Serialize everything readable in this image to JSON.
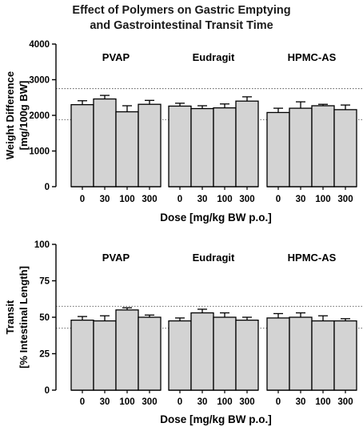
{
  "figure": {
    "title_line1": "Effect of Polymers on Gastric Emptying",
    "title_line2": "and Gastrointestinal Transit Time"
  },
  "colors": {
    "bar_fill": "#d3d3d3",
    "bar_stroke": "#000000",
    "reference_line": "#555555"
  },
  "chart_data": [
    {
      "type": "bar",
      "ylabel_line1": "Weight Difference",
      "ylabel_line2": "[mg/100g BW]",
      "xlabel": "Dose [mg/kg BW p.o.]",
      "ylim": [
        0,
        4000
      ],
      "yticks": [
        0,
        1000,
        2000,
        3000,
        4000
      ],
      "reference_lines": [
        2750,
        1880
      ],
      "groups": [
        {
          "name": "PVAP",
          "categories": [
            "0",
            "30",
            "100",
            "300"
          ],
          "values": [
            2300,
            2460,
            2100,
            2310
          ],
          "errors": [
            110,
            100,
            170,
            110
          ]
        },
        {
          "name": "Eudragit",
          "categories": [
            "0",
            "30",
            "100",
            "300"
          ],
          "values": [
            2260,
            2190,
            2210,
            2400
          ],
          "errors": [
            80,
            80,
            110,
            120
          ]
        },
        {
          "name": "HPMC-AS",
          "categories": [
            "0",
            "30",
            "100",
            "300"
          ],
          "values": [
            2080,
            2200,
            2270,
            2160
          ],
          "errors": [
            120,
            180,
            40,
            130
          ]
        }
      ]
    },
    {
      "type": "bar",
      "ylabel_line1": "Transit",
      "ylabel_line2": "[% Intestinal Length]",
      "xlabel": "Dose [mg/kg BW p.o.]",
      "ylim": [
        0,
        100
      ],
      "yticks": [
        0,
        25,
        50,
        75,
        100
      ],
      "reference_lines": [
        57.5,
        42.5
      ],
      "groups": [
        {
          "name": "PVAP",
          "categories": [
            "0",
            "30",
            "100",
            "300"
          ],
          "values": [
            48,
            47.5,
            55,
            50
          ],
          "errors": [
            2.5,
            3.5,
            1.5,
            1.5
          ]
        },
        {
          "name": "Eudragit",
          "categories": [
            "0",
            "30",
            "100",
            "300"
          ],
          "values": [
            47.5,
            53,
            50,
            48
          ],
          "errors": [
            2,
            2.5,
            3,
            2
          ]
        },
        {
          "name": "HPMC-AS",
          "categories": [
            "0",
            "30",
            "100",
            "300"
          ],
          "values": [
            49.5,
            50,
            47.5,
            47.5
          ],
          "errors": [
            3,
            3,
            3.5,
            1.5
          ]
        }
      ]
    }
  ]
}
